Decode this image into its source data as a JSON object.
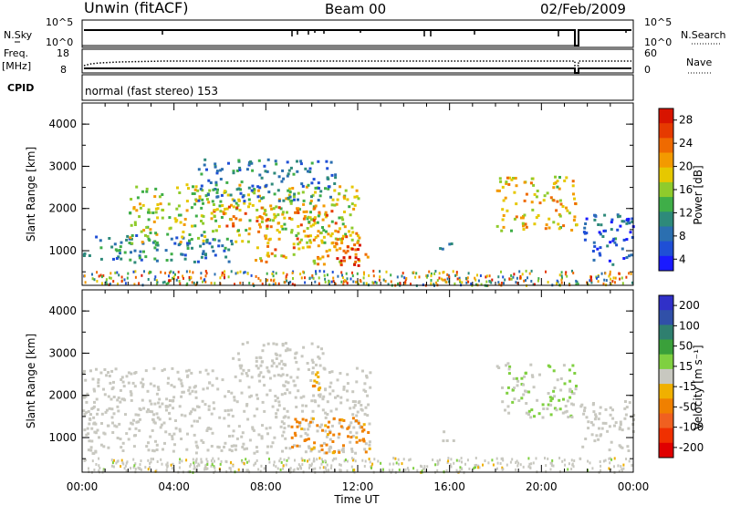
{
  "header": {
    "station": "Unwin (fitACF)",
    "beam": "Beam 00",
    "date": "02/Feb/2009"
  },
  "status": {
    "nsky_label": "N.Sky",
    "nsky_ticks": [
      "10^5",
      "10^0"
    ],
    "nsearch_label": "N.Search",
    "nsearch_ticks": [
      "10^5",
      "10^0"
    ],
    "freq_label": "Freq.",
    "freq_unit": "[MHz]",
    "freq_ticks": [
      "18",
      "8"
    ],
    "nave_label": "Nave",
    "nave_ticks": [
      "60",
      "0"
    ],
    "cpid_label": "CPID",
    "cpid_text": "normal (fast stereo) 153"
  },
  "axes": {
    "xlabel": "Time UT",
    "ylabel": "Slant Range [km]",
    "xticks": [
      "00:00",
      "04:00",
      "08:00",
      "12:00",
      "16:00",
      "20:00",
      "00:00"
    ],
    "yticks": [
      1000,
      2000,
      3000,
      4000
    ],
    "xlim_hours": [
      0,
      24
    ],
    "ylim_km": [
      180,
      4500
    ]
  },
  "colors": {
    "power_scale": [
      "#1a1aff",
      "#1f4fd6",
      "#2b6fb0",
      "#2e8a7a",
      "#3fae48",
      "#8fcb2c",
      "#e6c800",
      "#f39a00",
      "#ef6a00",
      "#e63a00",
      "#d81400"
    ],
    "velocity_scale": [
      "#3030c8",
      "#3050a8",
      "#2f7f6f",
      "#3aa03a",
      "#7fd040",
      "#c8c8c0",
      "#f0b000",
      "#f08000",
      "#f06020",
      "#f03000",
      "#e00000"
    ]
  },
  "chart_data": [
    {
      "type": "heatmap",
      "title": "Power",
      "colorbar_label": "Power [dB]",
      "colorbar_ticks": [
        "28",
        "24",
        "20",
        "16",
        "12",
        "8",
        "4"
      ],
      "value_range": [
        0,
        30
      ],
      "xlabel": "",
      "ylabel": "Slant Range [km]",
      "regions": [
        {
          "t0": 0.0,
          "t1": 6.5,
          "r0": 750,
          "r1": 1400,
          "level": 8
        },
        {
          "t0": 2.0,
          "t1": 12.0,
          "r0": 1200,
          "r1": 2600,
          "level": 16
        },
        {
          "t0": 5.5,
          "t1": 11.0,
          "r0": 1600,
          "r1": 2100,
          "level": 22
        },
        {
          "t0": 5.0,
          "t1": 11.0,
          "r0": 2200,
          "r1": 3200,
          "level": 8
        },
        {
          "t0": 7.5,
          "t1": 12.5,
          "r0": 700,
          "r1": 1500,
          "level": 20
        },
        {
          "t0": 11.0,
          "t1": 12.3,
          "r0": 650,
          "r1": 1200,
          "level": 28
        },
        {
          "t0": 15.5,
          "t1": 16.2,
          "r0": 950,
          "r1": 1200,
          "level": 6
        },
        {
          "t0": 18.0,
          "t1": 21.5,
          "r0": 1500,
          "r1": 2800,
          "level": 18
        },
        {
          "t0": 21.6,
          "t1": 24.0,
          "r0": 700,
          "r1": 1900,
          "level": 6
        }
      ]
    },
    {
      "type": "heatmap",
      "title": "Velocity",
      "colorbar_label": "Velocity [m s⁻¹]",
      "colorbar_ticks": [
        "200",
        "100",
        "50",
        "15",
        "-15",
        "-50",
        "-100",
        "-200"
      ],
      "value_range": [
        -250,
        250
      ],
      "xlabel": "Time UT",
      "ylabel": "Slant Range [km]",
      "regions": [
        {
          "t0": 0.0,
          "t1": 12.5,
          "r0": 650,
          "r1": 2700,
          "level": 0
        },
        {
          "t0": 6.5,
          "t1": 10.5,
          "r0": 2600,
          "r1": 3300,
          "level": 0
        },
        {
          "t0": 9.0,
          "t1": 12.5,
          "r0": 650,
          "r1": 1500,
          "level": -80
        },
        {
          "t0": 10.0,
          "t1": 11.0,
          "r0": 2150,
          "r1": 2600,
          "level": -60
        },
        {
          "t0": 15.5,
          "t1": 16.2,
          "r0": 950,
          "r1": 1200,
          "level": 0
        },
        {
          "t0": 18.0,
          "t1": 21.5,
          "r0": 1500,
          "r1": 2800,
          "level": 20
        },
        {
          "t0": 21.6,
          "t1": 24.0,
          "r0": 700,
          "r1": 1900,
          "level": 0
        }
      ]
    }
  ]
}
